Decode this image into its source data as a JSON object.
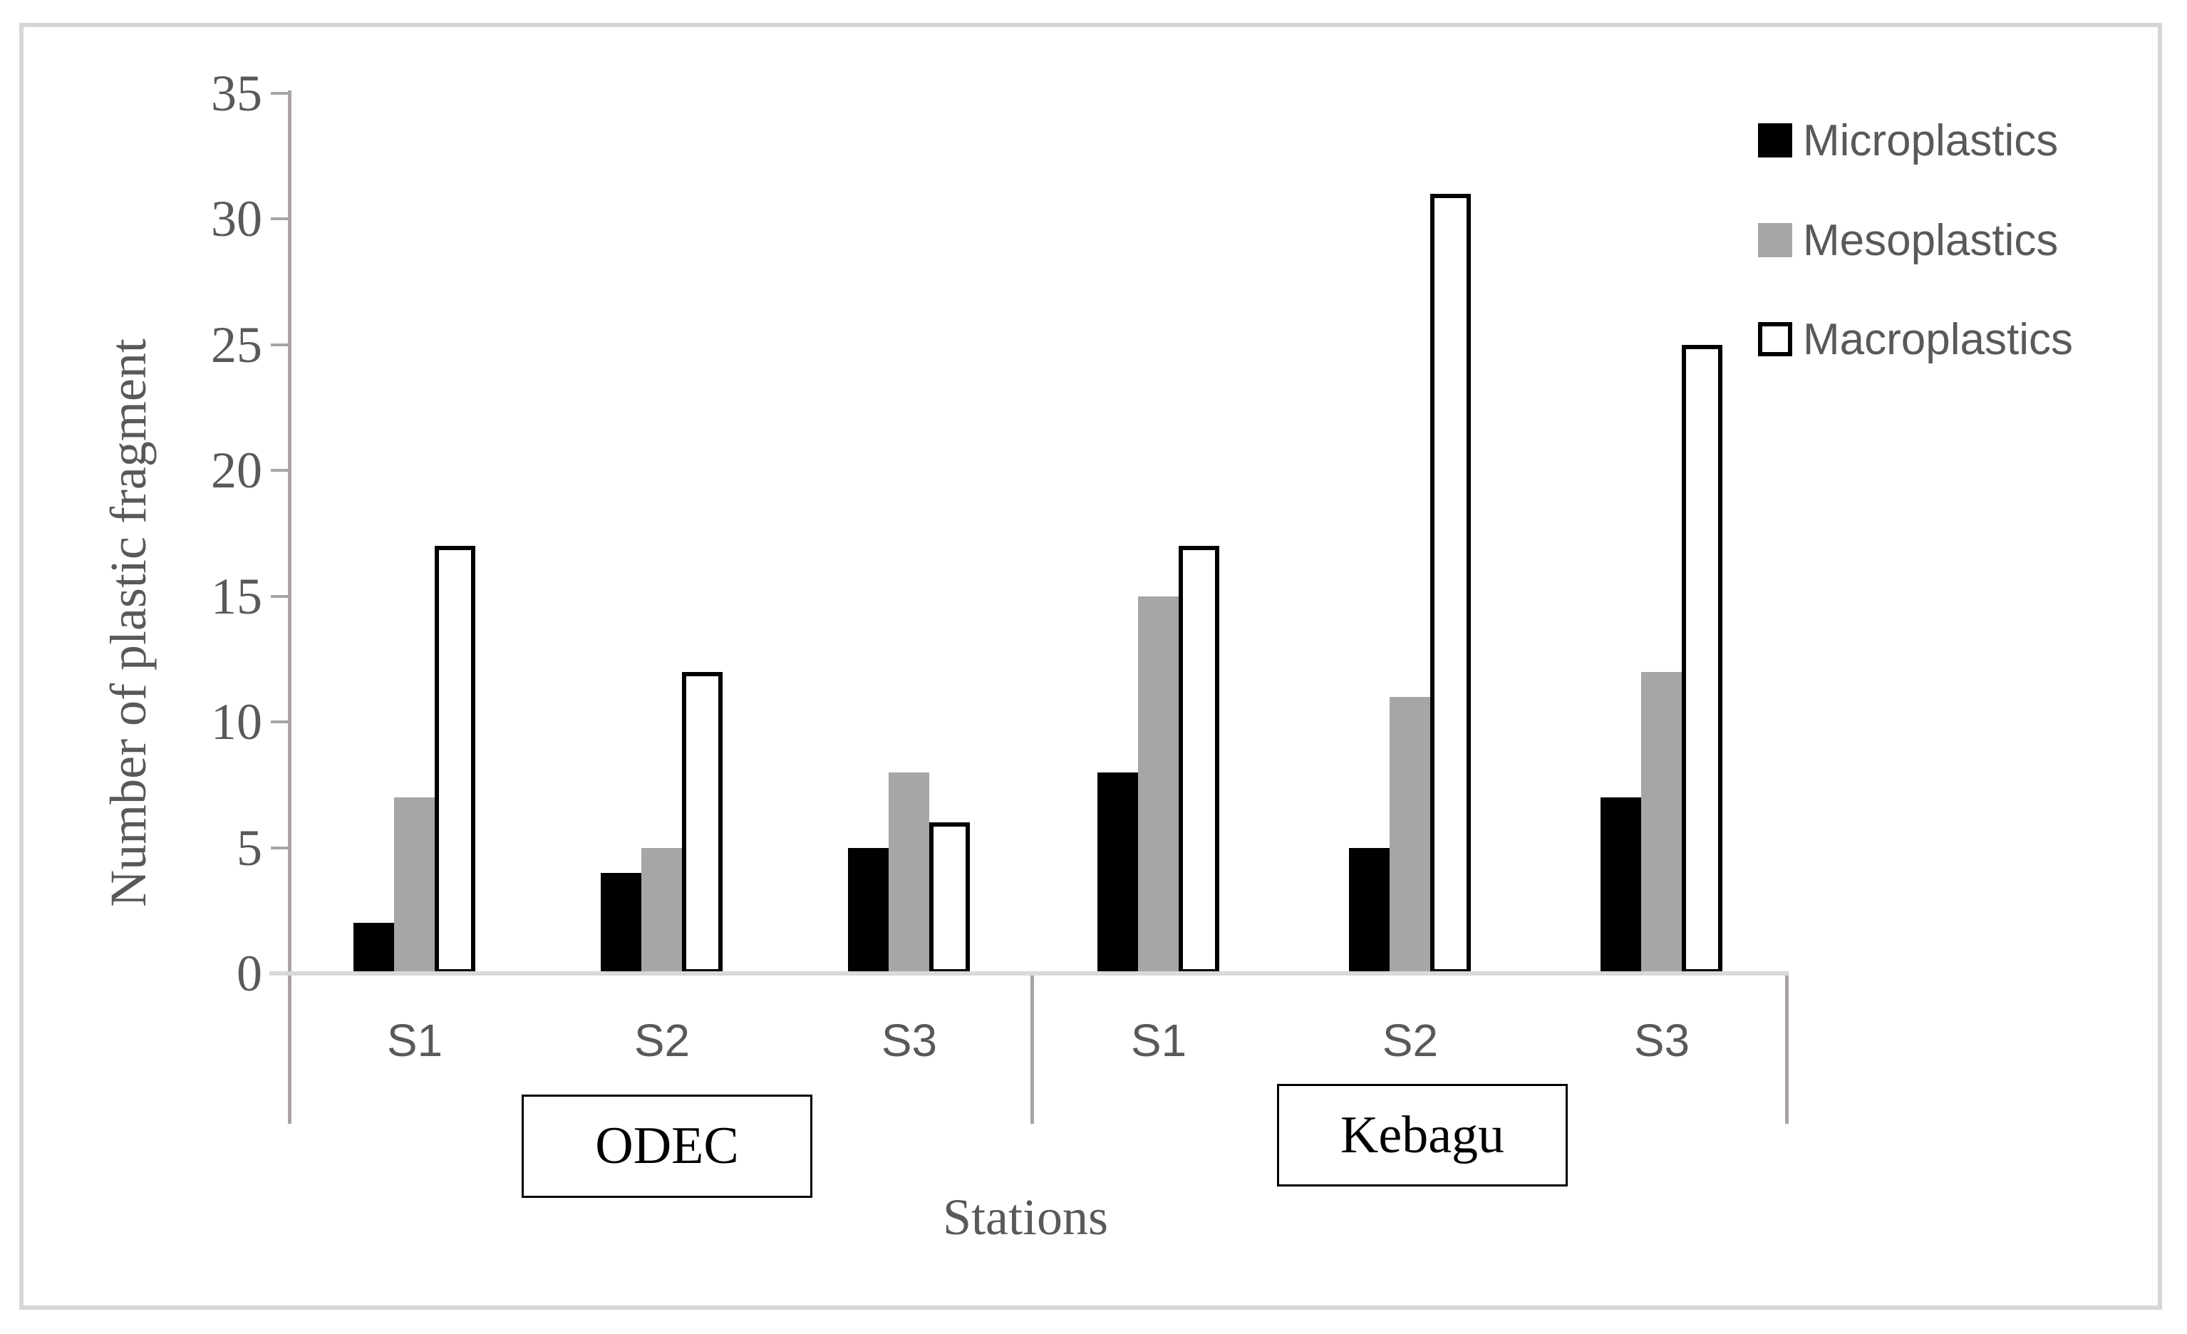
{
  "chart_data": {
    "type": "bar",
    "title": "",
    "xlabel": "Stations",
    "ylabel": "Number of plastic fragment",
    "ylim": [
      0,
      35
    ],
    "ytick_step": 5,
    "yticks": [
      0,
      5,
      10,
      15,
      20,
      25,
      30,
      35
    ],
    "grid": false,
    "legend_position": "top-right",
    "groups": [
      {
        "label": "ODEC",
        "categories": [
          "S1",
          "S2",
          "S3"
        ]
      },
      {
        "label": "Kebagu",
        "categories": [
          "S1",
          "S2",
          "S3"
        ]
      }
    ],
    "series": [
      {
        "name": "Microplastics",
        "fill": "#000000",
        "outline": "none",
        "values_by_group": [
          [
            2,
            4,
            5
          ],
          [
            8,
            5,
            7
          ]
        ]
      },
      {
        "name": "Mesoplastics",
        "fill": "#a6a6a6",
        "outline": "none",
        "values_by_group": [
          [
            7,
            5,
            8
          ],
          [
            15,
            11,
            12
          ]
        ]
      },
      {
        "name": "Macroplastics",
        "fill": "#ffffff",
        "outline": "#000000",
        "values_by_group": [
          [
            17,
            12,
            6
          ],
          [
            17,
            31,
            25
          ]
        ]
      }
    ],
    "colors": {
      "text_gray": "#595959",
      "axis_line": "#a9a4a1",
      "baseline": "#d9d9d9",
      "frame_border": "#d6d6d6",
      "bar_black": "#000000",
      "bar_gray": "#a6a6a6",
      "bar_white": "#ffffff"
    }
  }
}
